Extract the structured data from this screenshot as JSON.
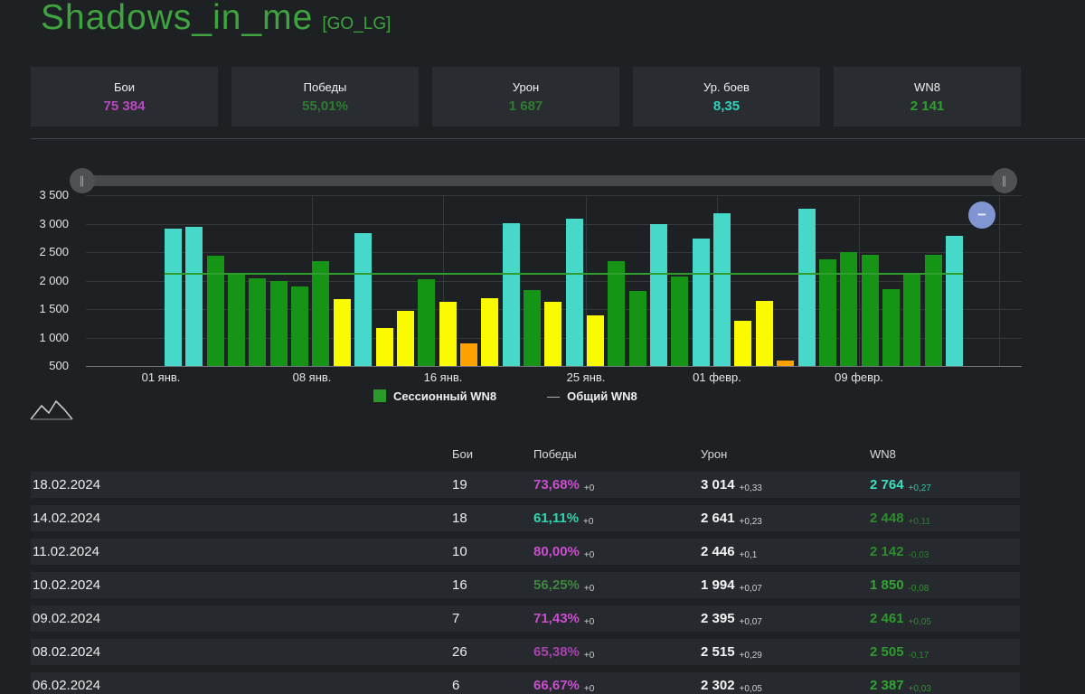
{
  "header": {
    "player_name": "Shadows_in_me",
    "clan_tag": "[GO_LG]"
  },
  "stat_cards": [
    {
      "label": "Бои",
      "value": "75 384",
      "color": "#bb49c0"
    },
    {
      "label": "Победы",
      "value": "55,01%",
      "color": "#2e7c32"
    },
    {
      "label": "Урон",
      "value": "1 687",
      "color": "#2e7c32"
    },
    {
      "label": "Ур. боев",
      "value": "8,35",
      "color": "#2fd5bd"
    },
    {
      "label": "WN8",
      "value": "2 141",
      "color": "#2f9e2f"
    }
  ],
  "slider": {
    "left_handle_icon": "∥",
    "right_handle_icon": "∥"
  },
  "chart_controls": {
    "collapse_label": "−"
  },
  "chart_data": {
    "type": "bar",
    "title": "",
    "ylim": [
      500,
      3500
    ],
    "grid": true,
    "legend_position": "bottom",
    "y_ticks": [
      "3 500",
      "3 000",
      "2 500",
      "2 000",
      "1 500",
      "1 000",
      "500"
    ],
    "x_tick_labels": [
      "01 янв.",
      "08 янв.",
      "16 янв.",
      "25 янв.",
      "01 февр.",
      "09 февр."
    ],
    "values": [
      2910,
      2950,
      2430,
      2120,
      2040,
      1990,
      1900,
      2340,
      1670,
      2830,
      1160,
      1470,
      2030,
      1630,
      900,
      1690,
      3010,
      1830,
      1620,
      3080,
      1390,
      2340,
      1810,
      2990,
      2070,
      2740,
      3180,
      1300,
      1650,
      600,
      3260,
      2380,
      2500,
      2460,
      1850,
      2130,
      2450,
      2780
    ],
    "bar_colors": [
      "cyan",
      "cyan",
      "green",
      "green",
      "green",
      "green",
      "green",
      "green",
      "yellow",
      "cyan",
      "yellow",
      "yellow",
      "green",
      "yellow",
      "orange",
      "yellow",
      "cyan",
      "green",
      "yellow",
      "cyan",
      "yellow",
      "green",
      "green",
      "cyan",
      "green",
      "cyan",
      "cyan",
      "yellow",
      "yellow",
      "orange",
      "cyan",
      "green",
      "green",
      "green",
      "green",
      "green",
      "green",
      "cyan"
    ],
    "palette": {
      "cyan": "#46d8c8",
      "green": "#159415",
      "yellow": "#fafa00",
      "orange": "#ffa200"
    },
    "overall_wn8_line": 2141,
    "legend": [
      {
        "label": "Сессионный WN8",
        "type": "swatch",
        "color": "#2a9a2a"
      },
      {
        "label": "Общий WN8",
        "type": "line",
        "dash": "—"
      }
    ]
  },
  "table": {
    "headers": [
      "Бои",
      "Победы",
      "Урон",
      "WN8"
    ],
    "rows": [
      {
        "date": "18.02.2024",
        "battles": "19",
        "wins": "73,68%",
        "wins_delta": "+0",
        "wins_color": "#ca4ecf",
        "damage": "3 014",
        "damage_delta": "+0,33",
        "wn8": "2 764",
        "wn8_delta": "+0,27",
        "wn8_color": "#3ae0bf"
      },
      {
        "date": "14.02.2024",
        "battles": "18",
        "wins": "61,11%",
        "wins_delta": "+0",
        "wins_color": "#2fd6ae",
        "damage": "2 641",
        "damage_delta": "+0,23",
        "wn8": "2 448",
        "wn8_delta": "+0,11",
        "wn8_color": "#2d8c2d"
      },
      {
        "date": "11.02.2024",
        "battles": "10",
        "wins": "80,00%",
        "wins_delta": "+0",
        "wins_color": "#ca4ecf",
        "damage": "2 446",
        "damage_delta": "+0,1",
        "wn8": "2 142",
        "wn8_delta": "-0,03",
        "wn8_color": "#2d8c2d"
      },
      {
        "date": "10.02.2024",
        "battles": "16",
        "wins": "56,25%",
        "wins_delta": "+0",
        "wins_color": "#3e873e",
        "damage": "1 994",
        "damage_delta": "+0,07",
        "wn8": "1 850",
        "wn8_delta": "-0,08",
        "wn8_color": "#33a433"
      },
      {
        "date": "09.02.2024",
        "battles": "7",
        "wins": "71,43%",
        "wins_delta": "+0",
        "wins_color": "#ca4ecf",
        "damage": "2 395",
        "damage_delta": "+0,07",
        "wn8": "2 461",
        "wn8_delta": "+0,05",
        "wn8_color": "#2f9a2f"
      },
      {
        "date": "08.02.2024",
        "battles": "26",
        "wins": "65,38%",
        "wins_delta": "+0",
        "wins_color": "#a843ad",
        "damage": "2 515",
        "damage_delta": "+0,29",
        "wn8": "2 505",
        "wn8_delta": "-0,17",
        "wn8_color": "#2f9a2f"
      },
      {
        "date": "06.02.2024",
        "battles": "6",
        "wins": "66,67%",
        "wins_delta": "+0",
        "wins_color": "#ca4ecf",
        "damage": "2 302",
        "damage_delta": "+0,05",
        "wn8": "2 387",
        "wn8_delta": "+0,03",
        "wn8_color": "#33a433"
      }
    ]
  }
}
